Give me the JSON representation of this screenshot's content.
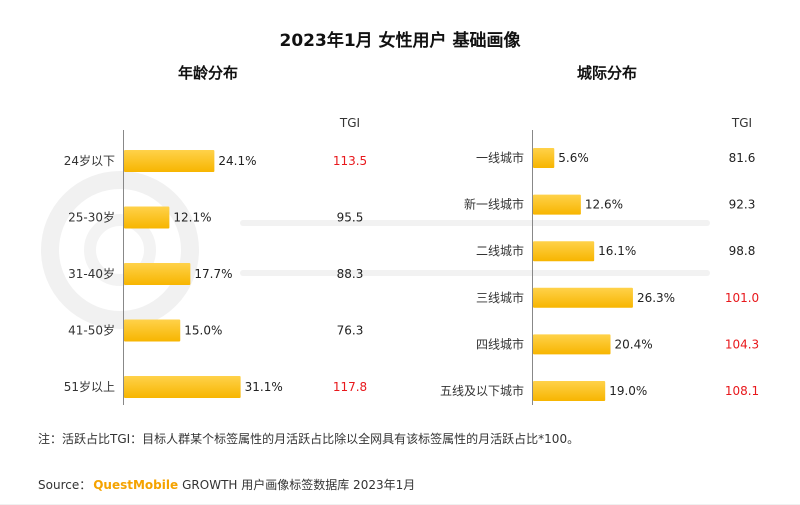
{
  "title": "2023年1月 女性用户 基础画像",
  "note": "注：活跃占比TGI：目标人群某个标签属性的月活跃占比除以全网具有该标签属性的月活跃占比*100。",
  "source": {
    "prefix": "Source：",
    "brand": "QuestMobile",
    "rest": "GROWTH 用户画像标签数据库 2023年1月"
  },
  "colors": {
    "bar_start": "#ffd24a",
    "bar_end": "#f7b500",
    "tgi_highlight": "#e8181c",
    "tgi_normal": "#222222"
  },
  "chart_data": [
    {
      "type": "bar",
      "orientation": "horizontal",
      "title": "年龄分布",
      "tgi_label": "TGI",
      "categories": [
        "24岁以下",
        "25-30岁",
        "31-40岁",
        "41-50岁",
        "51岁以上"
      ],
      "values": [
        24.1,
        12.1,
        17.7,
        15.0,
        31.1
      ],
      "value_labels": [
        "24.1%",
        "12.1%",
        "17.7%",
        "15.0%",
        "31.1%"
      ],
      "tgi": [
        "113.5",
        "95.5",
        "88.3",
        "76.3",
        "117.8"
      ],
      "tgi_highlight": [
        true,
        false,
        false,
        false,
        true
      ],
      "xlim": [
        0,
        40
      ]
    },
    {
      "type": "bar",
      "orientation": "horizontal",
      "title": "城际分布",
      "tgi_label": "TGI",
      "categories": [
        "一线城市",
        "新一线城市",
        "二线城市",
        "三线城市",
        "四线城市",
        "五线及以下城市"
      ],
      "values": [
        5.6,
        12.6,
        16.1,
        26.3,
        20.4,
        19.0
      ],
      "value_labels": [
        "5.6%",
        "12.6%",
        "16.1%",
        "26.3%",
        "20.4%",
        "19.0%"
      ],
      "tgi": [
        "81.6",
        "92.3",
        "98.8",
        "101.0",
        "104.3",
        "108.1"
      ],
      "tgi_highlight": [
        false,
        false,
        false,
        true,
        true,
        true
      ],
      "xlim": [
        0,
        30
      ]
    }
  ]
}
